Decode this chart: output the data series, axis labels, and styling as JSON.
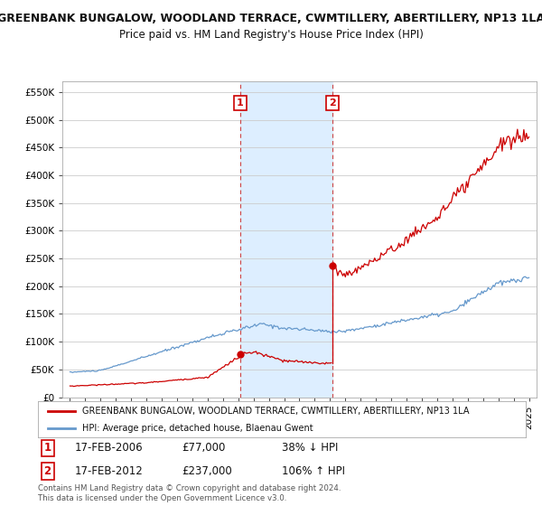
{
  "title": "GREENBANK BUNGALOW, WOODLAND TERRACE, CWMTILLERY, ABERTILLERY, NP13 1LA",
  "subtitle": "Price paid vs. HM Land Registry's House Price Index (HPI)",
  "red_label": "GREENBANK BUNGALOW, WOODLAND TERRACE, CWMTILLERY, ABERTILLERY, NP13 1LA",
  "blue_label": "HPI: Average price, detached house, Blaenau Gwent",
  "footer": "Contains HM Land Registry data © Crown copyright and database right 2024.\nThis data is licensed under the Open Government Licence v3.0.",
  "sale1_date": "17-FEB-2006",
  "sale1_price": 77000,
  "sale1_hpi_text": "38% ↓ HPI",
  "sale2_date": "17-FEB-2012",
  "sale2_price": 237000,
  "sale2_hpi_text": "106% ↑ HPI",
  "sale1_x": 2006.13,
  "sale2_x": 2012.13,
  "highlight_start": 2006.13,
  "highlight_end": 2012.13,
  "red_color": "#cc0000",
  "blue_color": "#6699cc",
  "highlight_color": "#ddeeff",
  "vline_color": "#cc4444",
  "bg_color": "#ffffff",
  "grid_color": "#cccccc",
  "ylim_min": 0,
  "ylim_max": 570000,
  "xlim_min": 1994.5,
  "xlim_max": 2025.5,
  "title_fontsize": 9,
  "subtitle_fontsize": 8.5,
  "tick_fontsize": 7.5,
  "legend_fontsize": 7.5
}
